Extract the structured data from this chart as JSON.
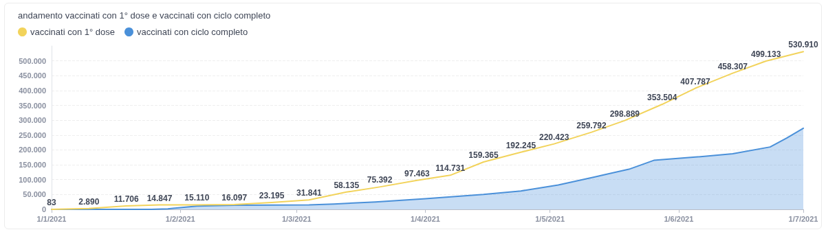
{
  "chart_data": {
    "type": "line",
    "title": "andamento vaccinati con 1° dose e vaccinati con ciclo completo",
    "legend": "top left",
    "grid": "y",
    "marker": "none",
    "line_style": "solid",
    "xlim": [
      "2021-01-01",
      "2021-07-01"
    ],
    "xticks": [
      {
        "value": "2021-01-01",
        "label": "1/1/2021"
      },
      {
        "value": "2021-02-01",
        "label": "1/2/2021"
      },
      {
        "value": "2021-03-01",
        "label": "1/3/2021"
      },
      {
        "value": "2021-04-01",
        "label": "1/4/2021"
      },
      {
        "value": "2021-05-01",
        "label": "1/5/2021"
      },
      {
        "value": "2021-06-01",
        "label": "1/6/2021"
      },
      {
        "value": "2021-07-01",
        "label": "1/7/2021"
      }
    ],
    "ylim": [
      0,
      550000
    ],
    "yticks": [
      {
        "value": 0,
        "label": "0"
      },
      {
        "value": 50000,
        "label": "50.000"
      },
      {
        "value": 100000,
        "label": "100.000"
      },
      {
        "value": 150000,
        "label": "150.000"
      },
      {
        "value": 200000,
        "label": "200.000"
      },
      {
        "value": 250000,
        "label": "250.000"
      },
      {
        "value": 300000,
        "label": "300.000"
      },
      {
        "value": 350000,
        "label": "350.000"
      },
      {
        "value": 400000,
        "label": "400.000"
      },
      {
        "value": 450000,
        "label": "450.000"
      },
      {
        "value": 500000,
        "label": "500.000"
      }
    ],
    "series": [
      {
        "name": "vaccinati con 1° dose",
        "color": "#f2d35b",
        "x": [
          "2021-01-01",
          "2021-01-10",
          "2021-01-19",
          "2021-01-27",
          "2021-02-05",
          "2021-02-14",
          "2021-02-23",
          "2021-03-04",
          "2021-03-13",
          "2021-03-21",
          "2021-03-30",
          "2021-04-07",
          "2021-04-15",
          "2021-04-24",
          "2021-05-02",
          "2021-05-11",
          "2021-05-19",
          "2021-05-28",
          "2021-06-05",
          "2021-06-14",
          "2021-06-22",
          "2021-07-01"
        ],
        "values": [
          83,
          2890,
          11706,
          14847,
          15110,
          16097,
          23195,
          31841,
          58135,
          75392,
          97463,
          114731,
          159365,
          192245,
          220423,
          259792,
          298889,
          353504,
          407787,
          458307,
          499133,
          530910
        ],
        "value_labels": [
          "83",
          "2.890",
          "11.706",
          "14.847",
          "15.110",
          "16.097",
          "23.195",
          "31.841",
          "58.135",
          "75.392",
          "97.463",
          "114.731",
          "159.365",
          "192.245",
          "220.423",
          "259.792",
          "298.889",
          "353.504",
          "407.787",
          "458.307",
          "499.133",
          "530.910"
        ]
      },
      {
        "name": "vaccinati con ciclo completo",
        "type": "area",
        "color": "#4a90d9",
        "x": [
          "2021-01-01",
          "2021-01-25",
          "2021-01-29",
          "2021-02-05",
          "2021-02-14",
          "2021-03-04",
          "2021-03-10",
          "2021-03-20",
          "2021-04-01",
          "2021-04-15",
          "2021-04-24",
          "2021-05-03",
          "2021-05-12",
          "2021-05-20",
          "2021-05-26",
          "2021-06-05",
          "2021-06-14",
          "2021-06-23",
          "2021-06-27",
          "2021-07-01"
        ],
        "values": [
          0,
          0,
          2000,
          11000,
          14000,
          15000,
          18000,
          25000,
          36000,
          50000,
          62000,
          82000,
          110000,
          135000,
          165000,
          176000,
          187000,
          210000,
          240000,
          273000
        ]
      }
    ]
  }
}
